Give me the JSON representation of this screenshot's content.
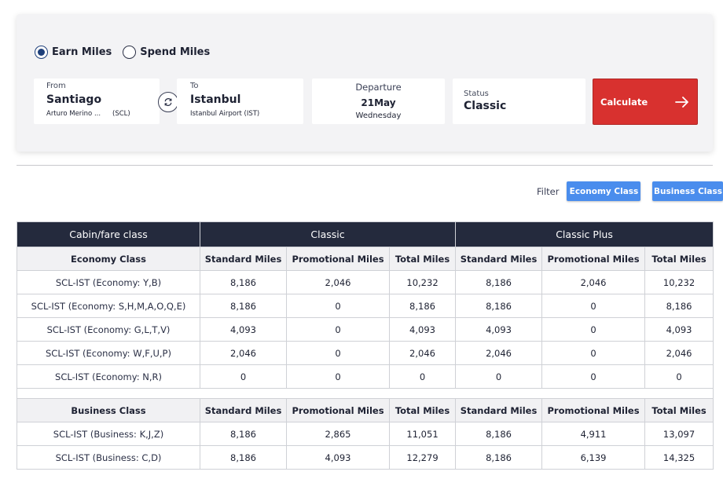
{
  "search": {
    "mode_options": [
      {
        "label": "Earn Miles",
        "checked": true
      },
      {
        "label": "Spend Miles",
        "checked": false
      }
    ],
    "from": {
      "label": "From",
      "city": "Santiago",
      "airport": "Arturo Merino ...",
      "code": "(SCL)"
    },
    "to": {
      "label": "To",
      "city": "Istanbul",
      "airport": "Istanbul Airport (IST)"
    },
    "departure": {
      "label": "Departure",
      "date": "21May",
      "weekday": "Wednesday"
    },
    "status": {
      "label": "Status",
      "value": "Classic"
    },
    "calculate_label": "Calculate"
  },
  "filter": {
    "label": "Filter",
    "options": [
      "Economy Class",
      "Business Class"
    ]
  },
  "table": {
    "header": {
      "cabin": "Cabin/fare class",
      "group1": "Classic",
      "group2": "Classic Plus"
    },
    "columns": [
      "Standard Miles",
      "Promotional Miles",
      "Total Miles"
    ],
    "sections": [
      {
        "title": "Economy Class",
        "rows": [
          {
            "fare": "SCL-IST (Economy: Y,B)",
            "values": [
              "8,186",
              "2,046",
              "10,232",
              "8,186",
              "2,046",
              "10,232"
            ]
          },
          {
            "fare": "SCL-IST (Economy: S,H,M,A,O,Q,E)",
            "values": [
              "8,186",
              "0",
              "8,186",
              "8,186",
              "0",
              "8,186"
            ]
          },
          {
            "fare": "SCL-IST (Economy: G,L,T,V)",
            "values": [
              "4,093",
              "0",
              "4,093",
              "4,093",
              "0",
              "4,093"
            ]
          },
          {
            "fare": "SCL-IST (Economy: W,F,U,P)",
            "values": [
              "2,046",
              "0",
              "2,046",
              "2,046",
              "0",
              "2,046"
            ]
          },
          {
            "fare": "SCL-IST (Economy: N,R)",
            "values": [
              "0",
              "0",
              "0",
              "0",
              "0",
              "0"
            ]
          }
        ]
      },
      {
        "title": "Business Class",
        "rows": [
          {
            "fare": "SCL-IST (Business: K,J,Z)",
            "values": [
              "8,186",
              "2,865",
              "11,051",
              "8,186",
              "4,911",
              "13,097"
            ]
          },
          {
            "fare": "SCL-IST (Business: C,D)",
            "values": [
              "8,186",
              "4,093",
              "12,279",
              "8,186",
              "6,139",
              "14,325"
            ]
          }
        ]
      }
    ]
  }
}
